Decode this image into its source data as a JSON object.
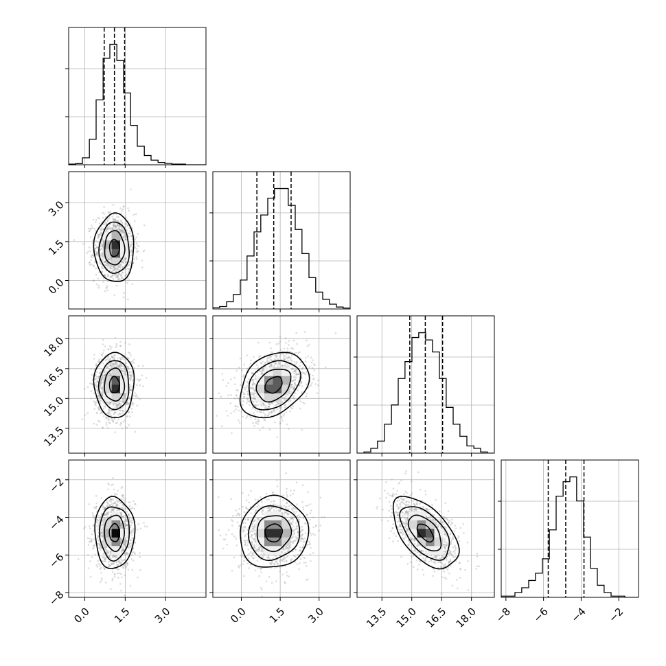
{
  "chart_data": {
    "type": "corner",
    "grid": true,
    "dims": [
      {
        "ticks": [
          0.0,
          1.5,
          3.0
        ],
        "tick_labels": [
          "0.0",
          "1.5",
          "3.0"
        ],
        "range": [
          -0.6,
          4.5
        ]
      },
      {
        "ticks": [
          0.0,
          1.5,
          3.0
        ],
        "tick_labels": [
          "0.0",
          "1.5",
          "3.0"
        ],
        "range": [
          -1.1,
          4.2
        ]
      },
      {
        "ticks": [
          13.5,
          15.0,
          16.5,
          18.0
        ],
        "tick_labels": [
          "13.5",
          "15.0",
          "16.5",
          "18.0"
        ],
        "range": [
          12.25,
          19.15
        ]
      },
      {
        "ticks": [
          -8,
          -6,
          -4,
          -2
        ],
        "tick_labels": [
          "−8",
          "−6",
          "−4",
          "−2"
        ],
        "range": [
          -8.25,
          -0.95
        ]
      }
    ],
    "histograms": [
      {
        "bin_edges": [
          -0.6,
          -0.34,
          -0.09,
          0.17,
          0.42,
          0.68,
          0.93,
          1.19,
          1.44,
          1.7,
          1.95,
          2.21,
          2.46,
          2.72,
          2.97,
          3.23,
          3.48,
          3.74,
          3.99,
          4.25,
          4.5
        ],
        "counts": [
          0.3,
          0.5,
          3,
          11,
          28,
          46,
          52,
          45,
          31,
          17,
          8,
          4,
          2,
          1,
          0.6,
          0.3,
          0.3,
          0,
          0,
          0
        ],
        "quantiles": [
          0.72,
          1.1,
          1.48
        ]
      },
      {
        "bin_edges": [
          -1.1,
          -0.84,
          -0.57,
          -0.31,
          -0.04,
          0.22,
          0.49,
          0.75,
          1.02,
          1.28,
          1.55,
          1.81,
          2.08,
          2.34,
          2.61,
          2.87,
          3.14,
          3.4,
          3.67,
          3.93,
          4.2
        ],
        "counts": [
          0.5,
          1,
          3,
          6,
          12,
          22,
          32,
          39,
          46,
          50,
          50,
          43,
          33,
          23,
          13,
          7,
          4,
          2,
          0.8,
          0.4
        ],
        "quantiles": [
          0.6,
          1.25,
          1.92
        ]
      },
      {
        "bin_edges": [
          12.25,
          12.6,
          12.94,
          13.28,
          13.63,
          13.98,
          14.32,
          14.66,
          15.01,
          15.35,
          15.7,
          16.04,
          16.39,
          16.73,
          17.08,
          17.42,
          17.77,
          18.12,
          18.46,
          18.8,
          19.15
        ],
        "counts": [
          0,
          0.5,
          2,
          5,
          12,
          20,
          31,
          38,
          48,
          50,
          47,
          42,
          31,
          19,
          12,
          7,
          3,
          2,
          0.5,
          0
        ],
        "quantiles": [
          14.9,
          15.68,
          16.55
        ]
      },
      {
        "bin_edges": [
          -8.25,
          -7.89,
          -7.52,
          -7.16,
          -6.79,
          -6.43,
          -6.06,
          -5.69,
          -5.33,
          -4.96,
          -4.6,
          -4.24,
          -3.87,
          -3.5,
          -3.14,
          -2.78,
          -2.41,
          -2.04,
          -1.68,
          -1.31,
          -0.95
        ],
        "counts": [
          0.5,
          0.5,
          2,
          4,
          7,
          10,
          16,
          28,
          42,
          48,
          50,
          40,
          25,
          12,
          5,
          2,
          0.5,
          0.5,
          0,
          0
        ],
        "quantiles": [
          -5.75,
          -4.82,
          -3.85
        ]
      }
    ],
    "pairs": [
      {
        "row": 1,
        "col": 0,
        "mean": [
          1.1,
          1.25
        ],
        "sd": [
          0.37,
          0.66
        ],
        "corr": 0.0
      },
      {
        "row": 2,
        "col": 0,
        "mean": [
          1.1,
          15.68
        ],
        "sd": [
          0.37,
          0.82
        ],
        "corr": 0.0
      },
      {
        "row": 2,
        "col": 1,
        "mean": [
          1.25,
          15.68
        ],
        "sd": [
          0.66,
          0.82
        ],
        "corr": 0.3
      },
      {
        "row": 3,
        "col": 0,
        "mean": [
          1.1,
          -4.82
        ],
        "sd": [
          0.37,
          0.95
        ],
        "corr": 0.0
      },
      {
        "row": 3,
        "col": 1,
        "mean": [
          1.25,
          -4.82
        ],
        "sd": [
          0.66,
          0.95
        ],
        "corr": 0.05
      },
      {
        "row": 3,
        "col": 2,
        "mean": [
          15.68,
          -4.82
        ],
        "sd": [
          0.82,
          0.95
        ],
        "corr": -0.55
      }
    ],
    "contour_levels": [
      0.5,
      1.0,
      1.5,
      2.0
    ]
  }
}
